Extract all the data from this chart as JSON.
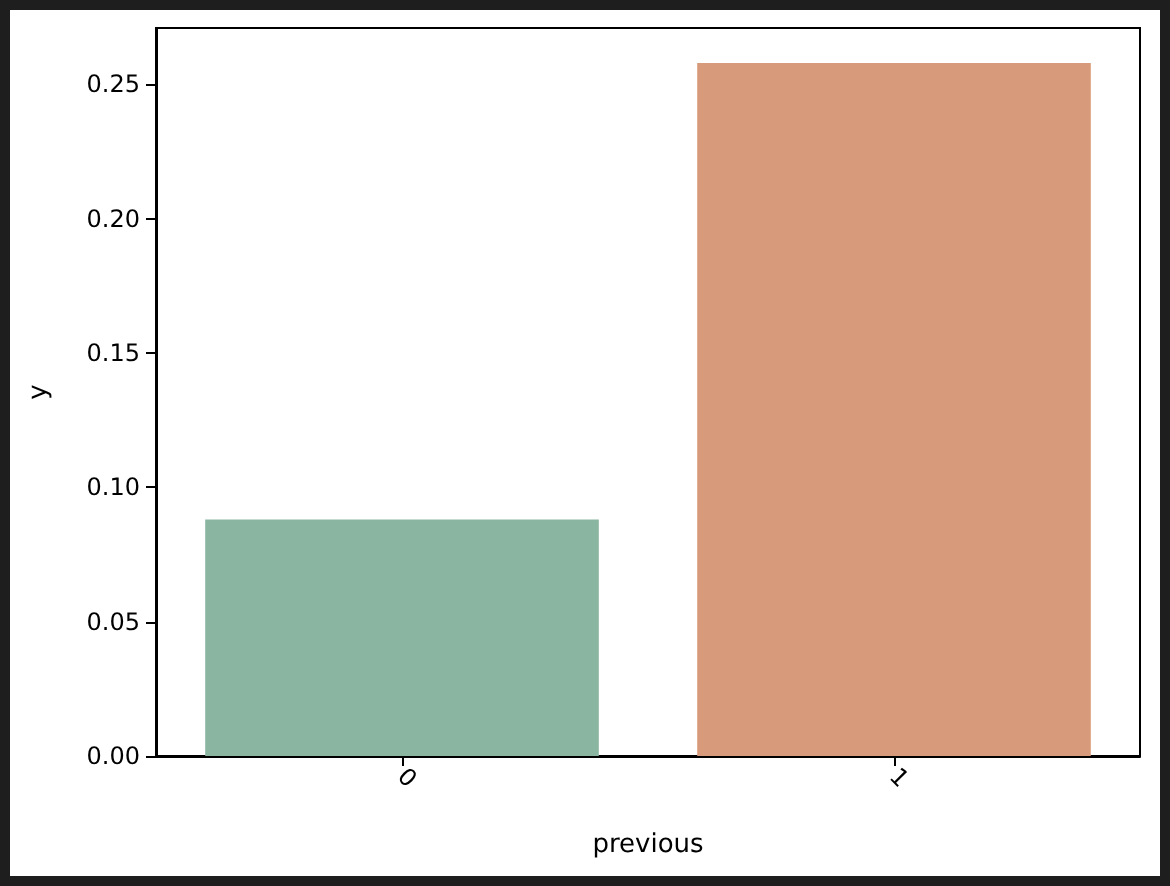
{
  "chart_data": {
    "type": "bar",
    "xlabel": "previous",
    "ylabel": "y",
    "categories": [
      "0",
      "1"
    ],
    "values": [
      0.088,
      0.258
    ],
    "colors": [
      "#8ab5a0",
      "#d79a7a"
    ],
    "ylim": [
      0,
      0.271
    ],
    "yticks": [
      {
        "value": 0,
        "label": "0.00"
      },
      {
        "value": 0.05,
        "label": "0.05"
      },
      {
        "value": 0.1,
        "label": "0.10"
      },
      {
        "value": 0.15,
        "label": "0.15"
      },
      {
        "value": 0.2,
        "label": "0.20"
      },
      {
        "value": 0.25,
        "label": "0.25"
      }
    ],
    "grid": false
  }
}
